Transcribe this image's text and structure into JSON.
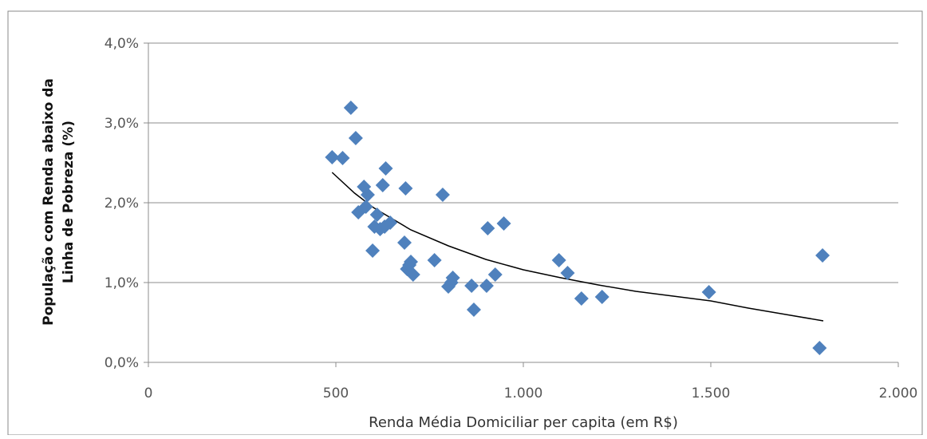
{
  "chart_data": {
    "type": "scatter",
    "title": "",
    "xlabel": "Renda Média Domiciliar per capita (em R$)",
    "ylabel_lines": [
      "População com Renda abaixo da",
      "Linha de Pobreza (%)"
    ],
    "xlim": [
      0,
      2000
    ],
    "ylim": [
      0,
      4.0
    ],
    "x_ticks": [
      0,
      500,
      1000,
      1500,
      2000
    ],
    "x_tick_labels": [
      "0",
      "500",
      "1.000",
      "1.500",
      "2.000"
    ],
    "y_ticks": [
      0,
      1,
      2,
      3,
      4
    ],
    "y_tick_labels": [
      "0,0%",
      "1,0%",
      "2,0%",
      "3,0%",
      "4,0%"
    ],
    "grid": {
      "horizontal": true,
      "vertical": false
    },
    "legend": "none",
    "series": [
      {
        "marker": "diamond",
        "color": "#4F81BD",
        "points": [
          [
            490,
            2.57
          ],
          [
            518,
            2.56
          ],
          [
            540,
            3.19
          ],
          [
            553,
            2.81
          ],
          [
            560,
            1.88
          ],
          [
            575,
            2.2
          ],
          [
            580,
            1.95
          ],
          [
            585,
            2.1
          ],
          [
            598,
            1.4
          ],
          [
            603,
            1.7
          ],
          [
            610,
            1.85
          ],
          [
            618,
            1.67
          ],
          [
            625,
            2.22
          ],
          [
            630,
            1.7
          ],
          [
            633,
            2.43
          ],
          [
            645,
            1.75
          ],
          [
            683,
            1.5
          ],
          [
            686,
            2.18
          ],
          [
            690,
            1.17
          ],
          [
            696,
            1.22
          ],
          [
            700,
            1.26
          ],
          [
            706,
            1.1
          ],
          [
            763,
            1.28
          ],
          [
            785,
            2.1
          ],
          [
            800,
            0.95
          ],
          [
            808,
            1.0
          ],
          [
            812,
            1.06
          ],
          [
            862,
            0.96
          ],
          [
            868,
            0.66
          ],
          [
            902,
            0.96
          ],
          [
            905,
            1.68
          ],
          [
            925,
            1.1
          ],
          [
            948,
            1.74
          ],
          [
            1095,
            1.28
          ],
          [
            1118,
            1.12
          ],
          [
            1155,
            0.8
          ],
          [
            1210,
            0.82
          ],
          [
            1495,
            0.88
          ],
          [
            1790,
            0.18
          ],
          [
            1798,
            1.34
          ]
        ]
      }
    ],
    "trendline": {
      "type": "power",
      "color": "#000000",
      "points": [
        [
          490,
          2.38
        ],
        [
          550,
          2.12
        ],
        [
          600,
          1.94
        ],
        [
          700,
          1.66
        ],
        [
          800,
          1.46
        ],
        [
          900,
          1.29
        ],
        [
          1000,
          1.16
        ],
        [
          1100,
          1.06
        ],
        [
          1200,
          0.97
        ],
        [
          1300,
          0.89
        ],
        [
          1400,
          0.83
        ],
        [
          1500,
          0.77
        ],
        [
          1600,
          0.68
        ],
        [
          1700,
          0.6
        ],
        [
          1800,
          0.52
        ]
      ]
    }
  }
}
